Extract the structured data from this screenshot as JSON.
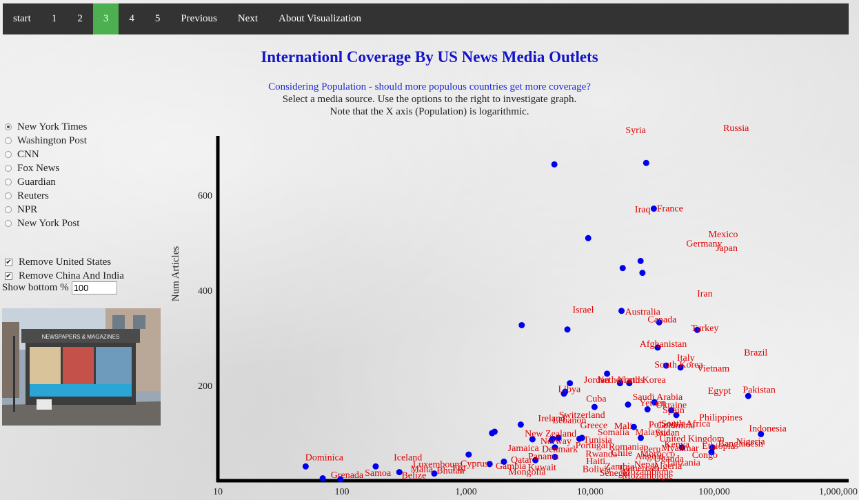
{
  "nav": {
    "items": [
      {
        "label": "start",
        "active": false
      },
      {
        "label": "1",
        "active": false
      },
      {
        "label": "2",
        "active": false
      },
      {
        "label": "3",
        "active": true
      },
      {
        "label": "4",
        "active": false
      },
      {
        "label": "5",
        "active": false
      },
      {
        "label": "Previous",
        "active": false
      },
      {
        "label": "Next",
        "active": false
      },
      {
        "label": "About Visualization",
        "active": false
      }
    ]
  },
  "page": {
    "title": "Internationl Coverage By US News Media Outlets",
    "question": "Considering Population - should more populous countries get more coverage?",
    "instruction": "Select a media source. Use the options to the right to investigate graph.",
    "note": "Note that the X axis (Population) is logarithmic."
  },
  "sources": {
    "selected": "New York Times",
    "items": [
      "New York Times",
      "Washington Post",
      "CNN",
      "Fox News",
      "Guardian",
      "Reuters",
      "NPR",
      "New York Post"
    ]
  },
  "filters": {
    "remove_us": {
      "label": "Remove United States",
      "checked": true
    },
    "remove_china_india": {
      "label": "Remove China And India",
      "checked": true
    },
    "show_bottom": {
      "label": "Show bottom %",
      "value": "100"
    }
  },
  "photo": {
    "sign": "NEWSPAPERS & MAGAZINES"
  },
  "colors": {
    "nav_bg": "#333333",
    "nav_active": "#4caf50",
    "title": "#1414c8",
    "points": "#0000ee",
    "labels": "#e00000"
  },
  "chart_data": {
    "type": "scatter",
    "x_scale": "log",
    "xlim": [
      10,
      1000000
    ],
    "ylim": [
      0,
      725
    ],
    "x_ticks": [
      "10",
      "100",
      "1,000",
      "10,000",
      "100,000",
      "1,000,000"
    ],
    "y_ticks": [
      200,
      400,
      600
    ],
    "ylabel": "Num Articles",
    "grid": false,
    "points": [
      [
        51,
        30
      ],
      [
        70,
        5
      ],
      [
        97,
        3
      ],
      [
        187,
        30
      ],
      [
        290,
        18
      ],
      [
        555,
        15
      ],
      [
        1050,
        55
      ],
      [
        1550,
        35
      ],
      [
        1620,
        100
      ],
      [
        1700,
        103
      ],
      [
        2020,
        40
      ],
      [
        2760,
        118
      ],
      [
        2810,
        327
      ],
      [
        3430,
        87
      ],
      [
        3620,
        43
      ],
      [
        4900,
        85
      ],
      [
        5000,
        88
      ],
      [
        5150,
        665
      ],
      [
        5200,
        70
      ],
      [
        5210,
        50
      ],
      [
        5560,
        90
      ],
      [
        6150,
        183
      ],
      [
        6290,
        187
      ],
      [
        6560,
        318
      ],
      [
        6870,
        205
      ],
      [
        8200,
        88
      ],
      [
        8600,
        90
      ],
      [
        9650,
        510
      ],
      [
        10850,
        155
      ],
      [
        13700,
        225
      ],
      [
        17400,
        205
      ],
      [
        17900,
        357
      ],
      [
        18300,
        447
      ],
      [
        20200,
        160
      ],
      [
        20700,
        205
      ],
      [
        22500,
        113
      ],
      [
        25500,
        462
      ],
      [
        25600,
        90
      ],
      [
        26400,
        437
      ],
      [
        28300,
        668
      ],
      [
        29000,
        150
      ],
      [
        32600,
        572
      ],
      [
        33000,
        165
      ],
      [
        35000,
        280
      ],
      [
        36000,
        333
      ],
      [
        41000,
        242
      ],
      [
        45000,
        148
      ],
      [
        49500,
        138
      ],
      [
        53500,
        238
      ],
      [
        55000,
        70
      ],
      [
        73000,
        317
      ],
      [
        95000,
        60
      ],
      [
        97000,
        70
      ],
      [
        188000,
        178
      ],
      [
        238000,
        98
      ]
    ],
    "labels": [
      {
        "name": "Russia",
        "x": 150000,
        "y": 735
      },
      {
        "name": "Syria",
        "x": 23300,
        "y": 731
      },
      {
        "name": "Iraq",
        "x": 26500,
        "y": 564
      },
      {
        "name": "France",
        "x": 44000,
        "y": 566
      },
      {
        "name": "Mexico",
        "x": 118000,
        "y": 512
      },
      {
        "name": "Germany",
        "x": 83000,
        "y": 492
      },
      {
        "name": "Japan",
        "x": 126000,
        "y": 483
      },
      {
        "name": "Iran",
        "x": 84000,
        "y": 387
      },
      {
        "name": "Israel",
        "x": 8800,
        "y": 353
      },
      {
        "name": "Australia",
        "x": 26500,
        "y": 349
      },
      {
        "name": "Canada",
        "x": 38000,
        "y": 333
      },
      {
        "name": "Turkey",
        "x": 84000,
        "y": 315
      },
      {
        "name": "Afghanistan",
        "x": 38800,
        "y": 281
      },
      {
        "name": "Brazil",
        "x": 216000,
        "y": 263
      },
      {
        "name": "Italy",
        "x": 59000,
        "y": 252
      },
      {
        "name": "South Korea",
        "x": 51700,
        "y": 238
      },
      {
        "name": "Vietnam",
        "x": 98000,
        "y": 230
      },
      {
        "name": "Jordan",
        "x": 11300,
        "y": 206
      },
      {
        "name": "Netherlands",
        "x": 17600,
        "y": 206
      },
      {
        "name": "North Korea",
        "x": 26000,
        "y": 206
      },
      {
        "name": "Libya",
        "x": 6800,
        "y": 186
      },
      {
        "name": "Egypt",
        "x": 110000,
        "y": 183
      },
      {
        "name": "Pakistan",
        "x": 230000,
        "y": 185
      },
      {
        "name": "Cuba",
        "x": 11200,
        "y": 166
      },
      {
        "name": "Saudi Arabia",
        "x": 35000,
        "y": 170
      },
      {
        "name": "Yemen",
        "x": 32000,
        "y": 157
      },
      {
        "name": "Ukraine",
        "x": 45000,
        "y": 153
      },
      {
        "name": "Spain",
        "x": 47000,
        "y": 142
      },
      {
        "name": "Switzerland",
        "x": 8600,
        "y": 132
      },
      {
        "name": "Philippines",
        "x": 113000,
        "y": 127
      },
      {
        "name": "Ireland",
        "x": 4900,
        "y": 125
      },
      {
        "name": "Lebanon",
        "x": 6800,
        "y": 121
      },
      {
        "name": "South Africa",
        "x": 59000,
        "y": 114
      },
      {
        "name": "Poland",
        "x": 38000,
        "y": 112
      },
      {
        "name": "Colombia",
        "x": 49000,
        "y": 110
      },
      {
        "name": "Greece",
        "x": 10700,
        "y": 110
      },
      {
        "name": "Mali",
        "x": 18500,
        "y": 109
      },
      {
        "name": "Indonesia",
        "x": 270000,
        "y": 104
      },
      {
        "name": "New Zealand",
        "x": 4800,
        "y": 93
      },
      {
        "name": "Somalia",
        "x": 15400,
        "y": 96
      },
      {
        "name": "Sudan",
        "x": 42000,
        "y": 95
      },
      {
        "name": "Malaysia",
        "x": 32000,
        "y": 96
      },
      {
        "name": "United Kingdom",
        "x": 66000,
        "y": 82
      },
      {
        "name": "Nigeria",
        "x": 196000,
        "y": 76
      },
      {
        "name": "Bangladesh",
        "x": 163000,
        "y": 72
      },
      {
        "name": "Ethiopia",
        "x": 108000,
        "y": 67
      },
      {
        "name": "Myanmar",
        "x": 53000,
        "y": 62
      },
      {
        "name": "Congo",
        "x": 84000,
        "y": 48
      },
      {
        "name": "Dominica",
        "x": 72,
        "y": 43
      },
      {
        "name": "Iceland",
        "x": 340,
        "y": 43
      },
      {
        "name": "Tanzania",
        "x": 56000,
        "y": 32
      },
      {
        "name": "Mozambique",
        "x": 29000,
        "y": 12
      },
      {
        "name": "Luxembourg",
        "x": 590,
        "y": 28
      },
      {
        "name": "Jamaica",
        "x": 2900,
        "y": 62
      },
      {
        "name": "Romania",
        "x": 19500,
        "y": 65
      },
      {
        "name": "Norway",
        "x": 5300,
        "y": 77
      },
      {
        "name": "Peru",
        "x": 31500,
        "y": 60
      },
      {
        "name": "Kenya",
        "x": 50000,
        "y": 70
      },
      {
        "name": "Chile",
        "x": 18000,
        "y": 52
      },
      {
        "name": "Portugal",
        "x": 10300,
        "y": 68
      },
      {
        "name": "Denmark",
        "x": 5700,
        "y": 60
      },
      {
        "name": "Cyprus",
        "x": 1170,
        "y": 30
      },
      {
        "name": "Malta",
        "x": 440,
        "y": 18
      },
      {
        "name": "Belize",
        "x": 380,
        "y": 5
      },
      {
        "name": "Samoa",
        "x": 195,
        "y": 10
      },
      {
        "name": "Grenada",
        "x": 110,
        "y": 6
      },
      {
        "name": "Bhutan",
        "x": 750,
        "y": 15
      },
      {
        "name": "Fiji",
        "x": 880,
        "y": 20
      },
      {
        "name": "Gambia",
        "x": 2300,
        "y": 25
      },
      {
        "name": "Qatar",
        "x": 2800,
        "y": 38
      },
      {
        "name": "Panama",
        "x": 4200,
        "y": 45
      },
      {
        "name": "Kuwait",
        "x": 4100,
        "y": 22
      },
      {
        "name": "Haiti",
        "x": 11100,
        "y": 35
      },
      {
        "name": "Bolivia",
        "x": 11300,
        "y": 18
      },
      {
        "name": "Zambia",
        "x": 17300,
        "y": 24
      },
      {
        "name": "Senegal",
        "x": 15800,
        "y": 10
      },
      {
        "name": "Uganda",
        "x": 43000,
        "y": 40
      },
      {
        "name": "Mongolia",
        "x": 3100,
        "y": 12
      },
      {
        "name": "Nepal",
        "x": 28000,
        "y": 28
      },
      {
        "name": "Angola",
        "x": 30000,
        "y": 45
      },
      {
        "name": "Cameroon",
        "x": 25000,
        "y": 20
      },
      {
        "name": "Rwanda",
        "x": 12300,
        "y": 50
      },
      {
        "name": "Tunisia",
        "x": 11500,
        "y": 80
      },
      {
        "name": "Morocco",
        "x": 35000,
        "y": 50
      },
      {
        "name": "Algeria",
        "x": 42000,
        "y": 25
      },
      {
        "name": "Mozambique",
        "x": 29000,
        "y": 4
      }
    ]
  }
}
